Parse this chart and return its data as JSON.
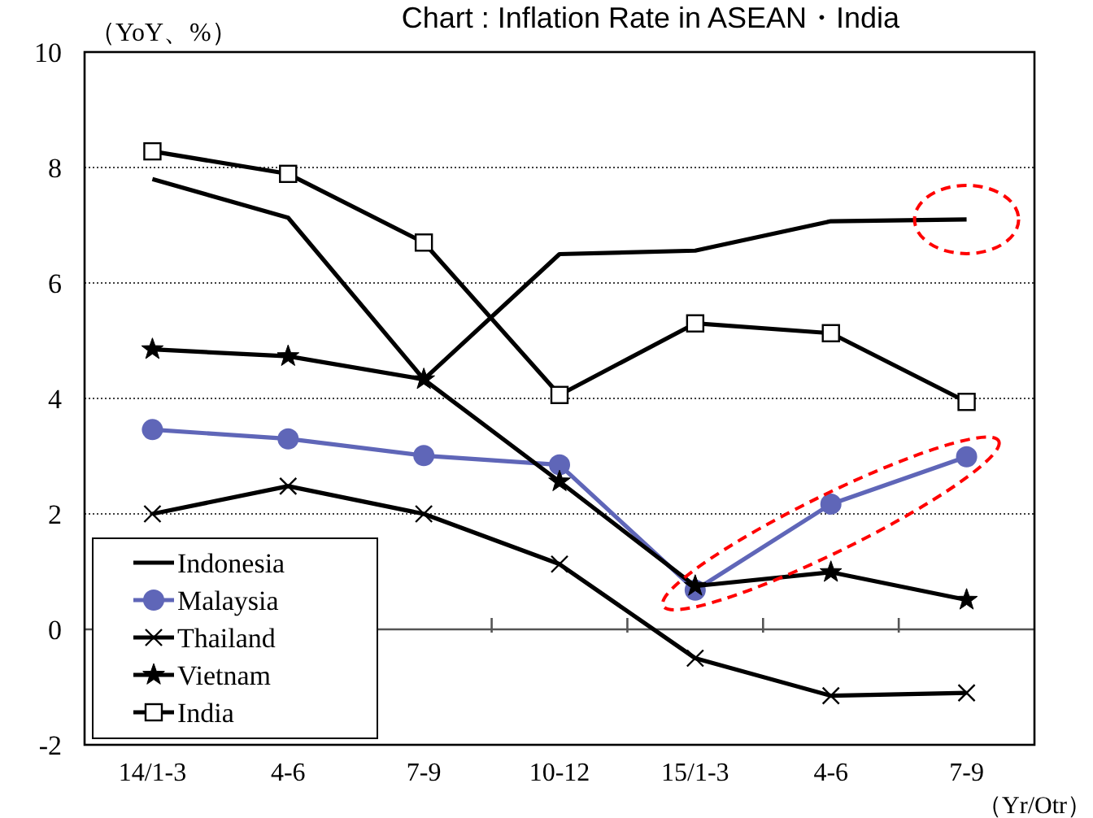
{
  "chart_data": {
    "type": "line",
    "title": "Chart : Inflation Rate in ASEAN・India",
    "ylabel": "（YoY、%）",
    "xlabel": "（Yr/Otr）",
    "categories": [
      "14/1-3",
      "4-6",
      "7-9",
      "10-12",
      "15/1-3",
      "4-6",
      "7-9"
    ],
    "ylim": [
      -2,
      10
    ],
    "yticks": [
      -2,
      0,
      2,
      4,
      6,
      8,
      10
    ],
    "grid": "y",
    "legend": "bottom left",
    "series": [
      {
        "name": "Indonesia",
        "color": "#000000",
        "marker": "none",
        "values": [
          7.8,
          7.13,
          4.33,
          6.5,
          6.56,
          7.07,
          7.1
        ]
      },
      {
        "name": "Malaysia",
        "color": "#5f66b8",
        "marker": "circle",
        "values": [
          3.46,
          3.3,
          3.01,
          2.85,
          0.68,
          2.17,
          2.99
        ]
      },
      {
        "name": "Thailand",
        "color": "#000000",
        "marker": "cross",
        "values": [
          2.0,
          2.48,
          2.0,
          1.13,
          -0.5,
          -1.15,
          -1.1
        ]
      },
      {
        "name": "Vietnam",
        "color": "#000000",
        "marker": "star",
        "values": [
          4.85,
          4.73,
          4.33,
          2.56,
          0.75,
          0.99,
          0.51
        ]
      },
      {
        "name": "India",
        "color": "#000000",
        "marker": "square",
        "values": [
          8.28,
          7.89,
          6.7,
          4.06,
          5.3,
          5.13,
          3.94
        ]
      }
    ]
  }
}
